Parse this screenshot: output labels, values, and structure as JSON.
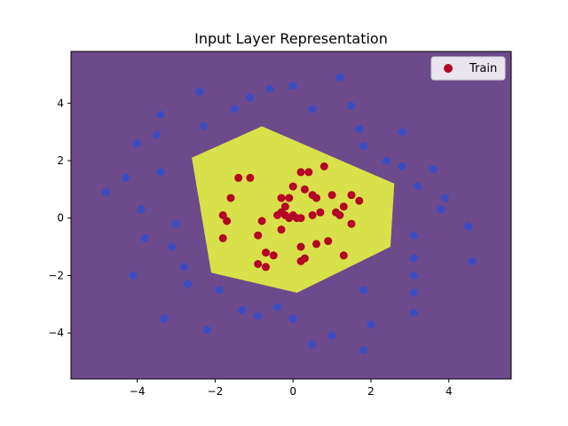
{
  "chart_data": {
    "type": "scatter",
    "title": "Input Layer Representation",
    "xlabel": "",
    "ylabel": "",
    "xlim": [
      -5.7,
      5.6
    ],
    "ylim": [
      -5.6,
      5.8
    ],
    "xticks": [
      -4,
      -2,
      0,
      2,
      4
    ],
    "yticks": [
      -4,
      -2,
      0,
      2,
      4
    ],
    "grid": false,
    "legend_position": "top-right",
    "background_region_color": "#6c4a8c",
    "decision_region_color": "#d8e04a",
    "decision_region": [
      [
        -0.8,
        3.2
      ],
      [
        -2.6,
        2.1
      ],
      [
        -2.1,
        -1.9
      ],
      [
        0.1,
        -2.6
      ],
      [
        2.5,
        -1.0
      ],
      [
        2.6,
        1.2
      ]
    ],
    "series": [
      {
        "name": "Train",
        "in_legend": true,
        "color": "#b40426",
        "points": [
          [
            -1.4,
            1.4
          ],
          [
            -1.1,
            1.4
          ],
          [
            0.2,
            1.6
          ],
          [
            0.4,
            1.6
          ],
          [
            0.8,
            1.8
          ],
          [
            -1.6,
            0.7
          ],
          [
            0.0,
            1.1
          ],
          [
            0.3,
            1.0
          ],
          [
            0.5,
            0.8
          ],
          [
            0.6,
            0.7
          ],
          [
            1.0,
            0.8
          ],
          [
            1.5,
            0.8
          ],
          [
            1.7,
            0.6
          ],
          [
            -0.3,
            0.7
          ],
          [
            -0.2,
            0.4
          ],
          [
            -0.1,
            0.7
          ],
          [
            1.3,
            0.4
          ],
          [
            0.7,
            0.2
          ],
          [
            -1.8,
            0.1
          ],
          [
            -1.7,
            -0.1
          ],
          [
            -0.8,
            -0.1
          ],
          [
            -0.4,
            0.1
          ],
          [
            -0.3,
            0.2
          ],
          [
            -0.2,
            0.1
          ],
          [
            0.0,
            0.1
          ],
          [
            0.1,
            0.0
          ],
          [
            -0.1,
            0.0
          ],
          [
            0.2,
            0.0
          ],
          [
            0.5,
            0.1
          ],
          [
            1.1,
            0.2
          ],
          [
            1.2,
            0.1
          ],
          [
            1.5,
            -0.2
          ],
          [
            -0.3,
            -0.4
          ],
          [
            -0.9,
            -0.6
          ],
          [
            -1.8,
            -0.7
          ],
          [
            0.2,
            -1.0
          ],
          [
            0.6,
            -0.9
          ],
          [
            0.9,
            -0.8
          ],
          [
            -0.5,
            -1.3
          ],
          [
            0.3,
            -1.4
          ],
          [
            0.2,
            -1.5
          ],
          [
            1.3,
            -1.3
          ],
          [
            -0.9,
            -1.6
          ],
          [
            -0.7,
            -1.7
          ],
          [
            -0.7,
            -1.2
          ]
        ]
      },
      {
        "name": "",
        "in_legend": false,
        "color": "#3b4cc0",
        "points": [
          [
            -0.6,
            4.5
          ],
          [
            0.0,
            4.6
          ],
          [
            1.2,
            4.9
          ],
          [
            -2.4,
            4.4
          ],
          [
            -1.1,
            4.2
          ],
          [
            -3.4,
            3.6
          ],
          [
            -1.5,
            3.8
          ],
          [
            0.5,
            3.8
          ],
          [
            1.5,
            3.9
          ],
          [
            -2.3,
            3.2
          ],
          [
            1.7,
            3.1
          ],
          [
            2.8,
            3.0
          ],
          [
            -4.0,
            2.6
          ],
          [
            -3.5,
            2.9
          ],
          [
            1.8,
            2.5
          ],
          [
            2.4,
            2.0
          ],
          [
            2.8,
            1.8
          ],
          [
            3.6,
            1.7
          ],
          [
            -4.3,
            1.4
          ],
          [
            -3.4,
            1.6
          ],
          [
            3.2,
            1.1
          ],
          [
            -4.8,
            0.9
          ],
          [
            3.9,
            0.7
          ],
          [
            -3.9,
            0.3
          ],
          [
            3.8,
            0.3
          ],
          [
            -3.0,
            -0.2
          ],
          [
            4.5,
            -0.3
          ],
          [
            -3.8,
            -0.7
          ],
          [
            3.1,
            -0.6
          ],
          [
            -3.1,
            -1.0
          ],
          [
            4.6,
            -1.5
          ],
          [
            -4.1,
            -2.0
          ],
          [
            3.1,
            -1.4
          ],
          [
            -2.8,
            -1.7
          ],
          [
            3.1,
            -2.0
          ],
          [
            -2.7,
            -2.3
          ],
          [
            1.8,
            -2.5
          ],
          [
            3.1,
            -2.6
          ],
          [
            -1.9,
            -2.5
          ],
          [
            -0.4,
            -3.1
          ],
          [
            -1.3,
            -3.2
          ],
          [
            -0.9,
            -3.4
          ],
          [
            0.0,
            -3.5
          ],
          [
            3.1,
            -3.3
          ],
          [
            -3.3,
            -3.5
          ],
          [
            2.0,
            -3.7
          ],
          [
            -2.2,
            -3.9
          ],
          [
            1.0,
            -4.1
          ],
          [
            0.5,
            -4.4
          ],
          [
            1.8,
            -4.6
          ]
        ]
      }
    ]
  }
}
